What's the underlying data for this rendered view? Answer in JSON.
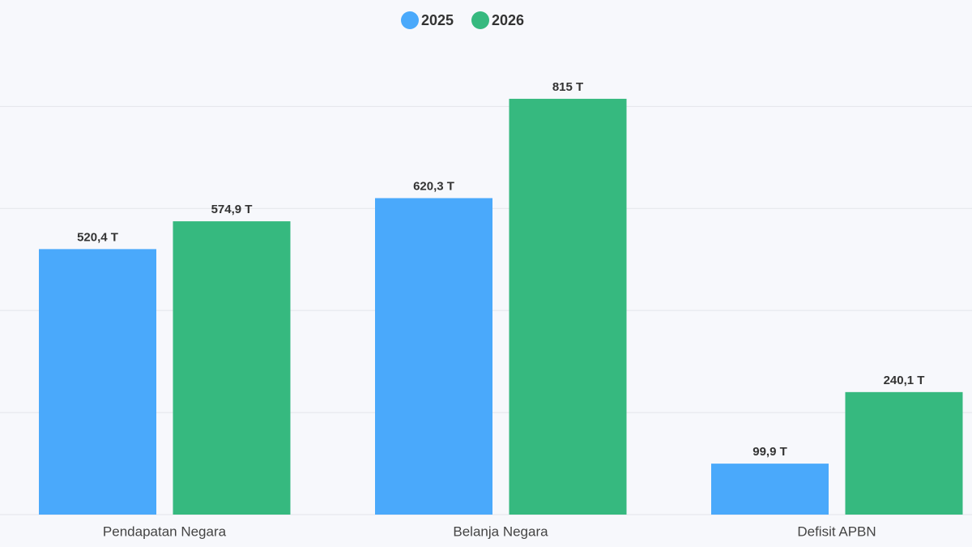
{
  "chart_data": {
    "type": "bar",
    "categories": [
      "Pendapatan Negara",
      "Belanja Negara",
      "Defisit APBN"
    ],
    "series": [
      {
        "name": "2025",
        "color": "#4aa9fb",
        "values": [
          520.4,
          620.3,
          99.9
        ],
        "value_labels": [
          "520,4 T",
          "620,3 T",
          "99,9 T"
        ]
      },
      {
        "name": "2026",
        "color": "#36b97f",
        "values": [
          574.9,
          815,
          240.1
        ],
        "value_labels": [
          "574,9 T",
          "815 T",
          "240,1 T"
        ]
      }
    ],
    "ylim": [
      0,
      880
    ],
    "yticks": [
      0,
      200,
      400,
      600,
      800
    ],
    "grid": true,
    "legend": "top"
  }
}
